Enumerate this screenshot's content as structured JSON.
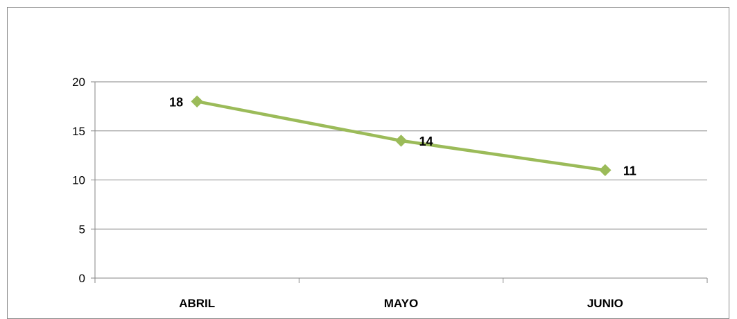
{
  "chart_data": {
    "type": "line",
    "categories": [
      "ABRIL",
      "MAYO",
      "JUNIO"
    ],
    "series": [
      {
        "values": [
          18,
          14,
          11
        ],
        "color": "#9BBB59"
      }
    ],
    "data_labels": [
      "18",
      "14",
      "11"
    ],
    "y_ticks": [
      0,
      5,
      10,
      15,
      20
    ],
    "y_tick_labels": [
      "0",
      "5",
      "10",
      "15",
      "20"
    ],
    "ylim": [
      0,
      20
    ],
    "grid": true,
    "legend": "none",
    "marker": "diamond",
    "gridline_color": "#868686"
  }
}
